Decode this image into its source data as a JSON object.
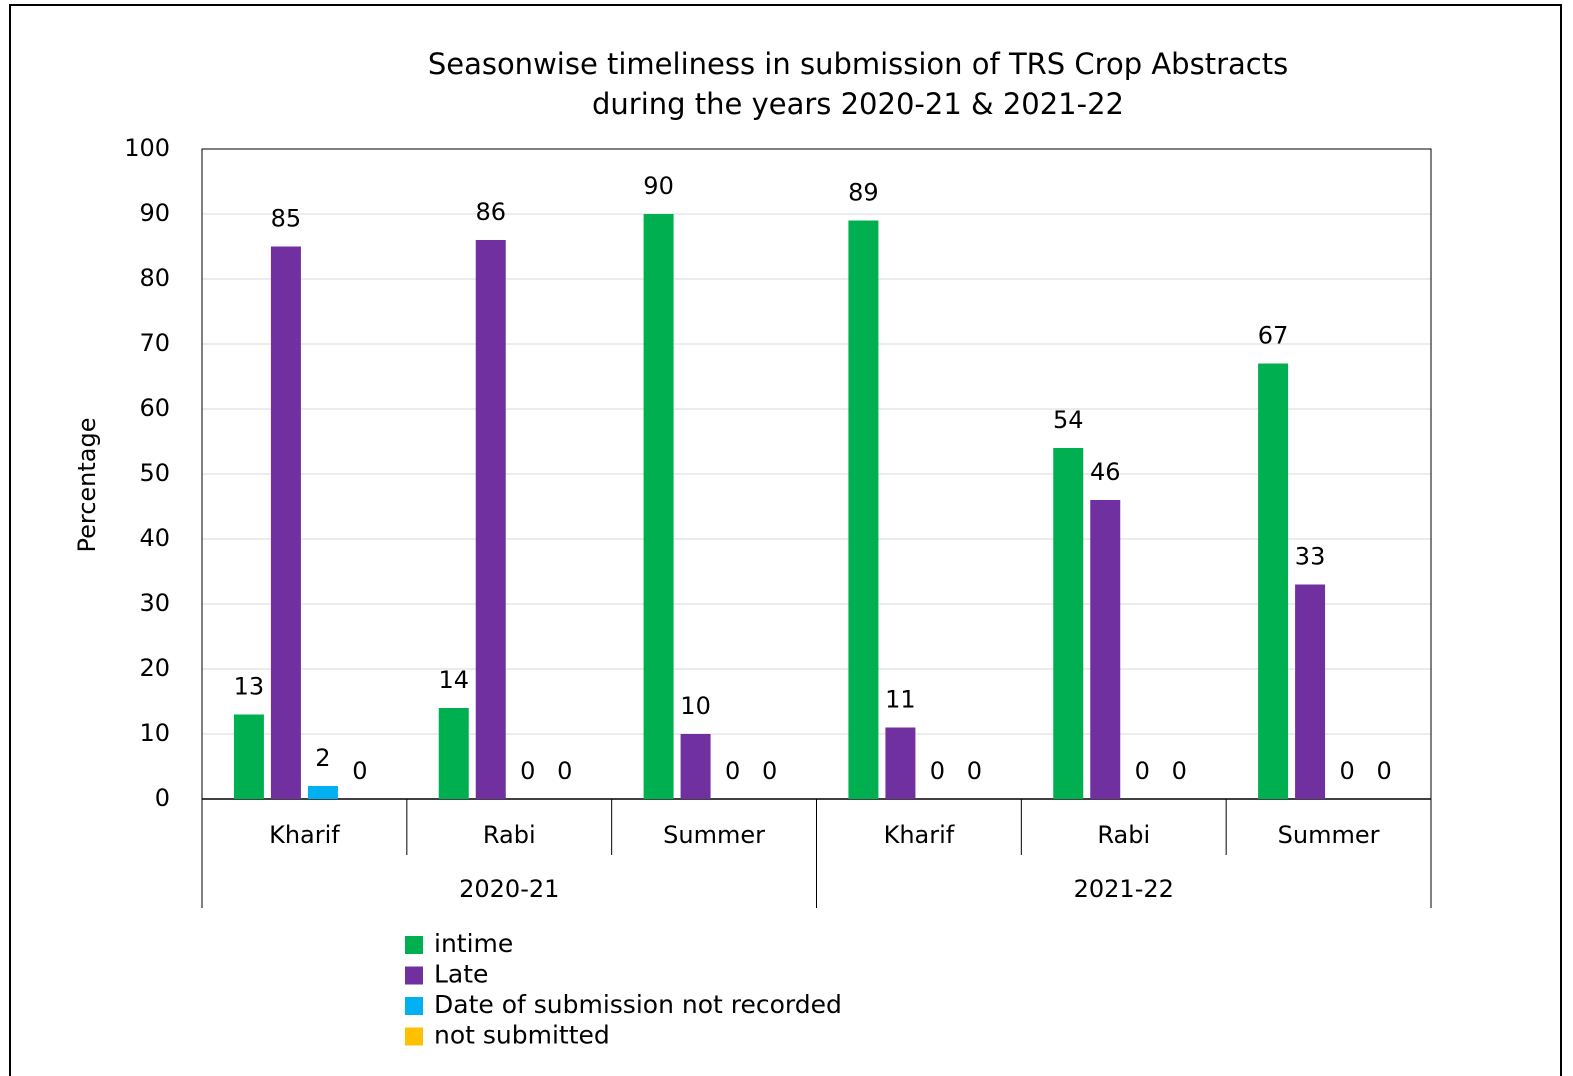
{
  "chart_data": {
    "type": "bar",
    "title": [
      "Seasonwise timeliness in submission of TRS Crop Abstracts",
      "during the years 2020-21 & 2021-22"
    ],
    "y_label": "Percentage",
    "categories": [
      "Kharif",
      "Rabi",
      "Summer",
      "Kharif",
      "Rabi",
      "Summer"
    ],
    "groups": [
      "2020-21",
      "2021-22"
    ],
    "series": [
      {
        "name": "intime",
        "color": "#00b050",
        "values": [
          13,
          14,
          90,
          89,
          54,
          67
        ]
      },
      {
        "name": "Late",
        "color": "#7030a0",
        "values": [
          85,
          86,
          10,
          11,
          46,
          33
        ]
      },
      {
        "name": "Date of submission not recorded",
        "color": "#00b0f0",
        "values": [
          2,
          0,
          0,
          0,
          0,
          0
        ]
      },
      {
        "name": "not submitted",
        "color": "#ffc000",
        "values": [
          0,
          0,
          0,
          0,
          0,
          0
        ]
      }
    ],
    "ylim": [
      0,
      100
    ],
    "yticks": [
      0,
      10,
      20,
      30,
      40,
      50,
      60,
      70,
      80,
      90,
      100
    ],
    "grid": true,
    "legend": "bottom"
  }
}
